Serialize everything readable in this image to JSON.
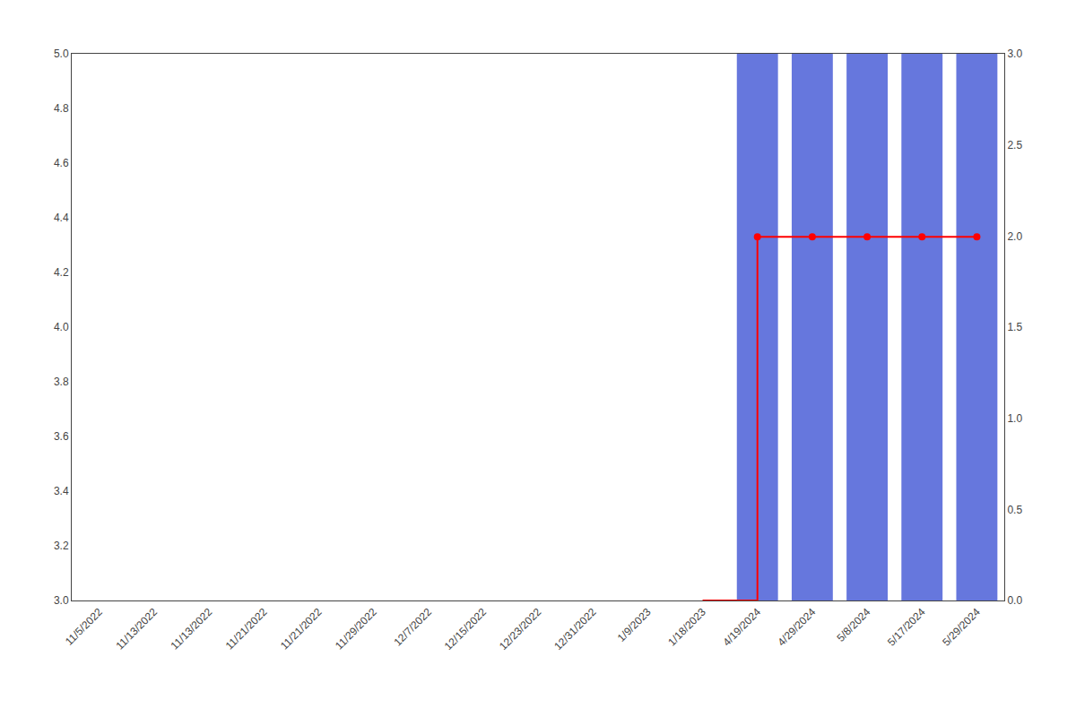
{
  "chart_data": {
    "type": "bar",
    "categories": [
      "11/5/2022",
      "11/13/2022",
      "11/13/2022",
      "11/21/2022",
      "11/21/2022",
      "11/29/2022",
      "12/7/2022",
      "12/15/2022",
      "12/23/2022",
      "12/31/2022",
      "1/9/2023",
      "1/18/2023",
      "4/19/2024",
      "4/29/2024",
      "5/8/2024",
      "5/17/2024",
      "5/29/2024"
    ],
    "series": [
      {
        "type": "bar",
        "axis": "y2",
        "color": "#6677dd",
        "values": [
          null,
          null,
          null,
          null,
          null,
          null,
          null,
          null,
          null,
          null,
          null,
          null,
          3.0,
          3.0,
          3.0,
          3.0,
          3.0
        ]
      },
      {
        "type": "line",
        "line_style": "step",
        "color": "#ff0000",
        "values": [
          null,
          null,
          null,
          null,
          null,
          null,
          null,
          null,
          null,
          null,
          null,
          3.0,
          4.33,
          4.33,
          4.33,
          4.33,
          4.33
        ]
      },
      {
        "type": "scatter",
        "marker": "circle",
        "color": "#ff0000",
        "values": [
          null,
          null,
          null,
          null,
          null,
          null,
          null,
          null,
          null,
          null,
          null,
          null,
          4.33,
          4.33,
          4.33,
          4.33,
          4.33
        ]
      }
    ],
    "ylim": [
      3.0,
      5.0
    ],
    "yticks": [
      {
        "value": 3.0,
        "label": "3.0"
      },
      3.2,
      3.4,
      3.6,
      3.8,
      {
        "value": 4.0,
        "label": "4.0"
      },
      4.2,
      4.4,
      4.6,
      4.8,
      {
        "value": 5.0,
        "label": "5.0"
      }
    ],
    "y2lim": [
      0.0,
      3.0
    ],
    "y2ticks": [
      {
        "value": 0.0,
        "label": "0.0"
      },
      0.5,
      {
        "value": 1.0,
        "label": "1.0"
      },
      1.5,
      {
        "value": 2.0,
        "label": "2.0"
      },
      2.5,
      {
        "value": 3.0,
        "label": "3.0"
      }
    ],
    "grid": false
  }
}
